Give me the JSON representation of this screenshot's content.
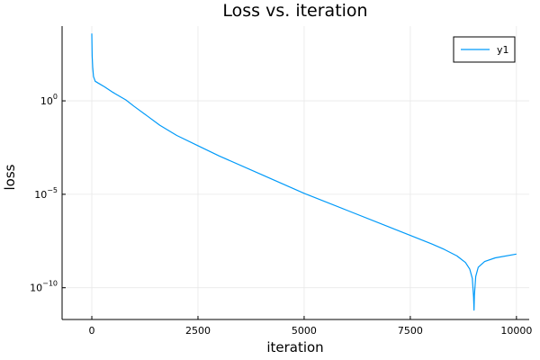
{
  "chart_data": {
    "type": "line",
    "title": "Loss vs. iteration",
    "xlabel": "iteration",
    "ylabel": "loss",
    "xlim": [
      -700,
      10300
    ],
    "x_ticks": [
      0,
      2500,
      5000,
      7500,
      10000
    ],
    "x_tick_labels": [
      "0",
      "2500",
      "5000",
      "7500",
      "10000"
    ],
    "y_scale": "log10",
    "ylim_log10": [
      -11.7,
      4.0
    ],
    "y_ticks_log10": [
      0,
      -5,
      -10
    ],
    "y_tick_labels": [
      {
        "base": "10",
        "exp": "0"
      },
      {
        "base": "10",
        "exp": "−5"
      },
      {
        "base": "10",
        "exp": "−10"
      }
    ],
    "grid": true,
    "legend_position": "top-right",
    "series": [
      {
        "name": "y1",
        "color": "#009af9",
        "points": [
          {
            "x": 0,
            "log10_y": 3.6
          },
          {
            "x": 8,
            "log10_y": 2.4
          },
          {
            "x": 20,
            "log10_y": 1.8
          },
          {
            "x": 40,
            "log10_y": 1.3
          },
          {
            "x": 80,
            "log10_y": 1.05
          },
          {
            "x": 150,
            "log10_y": 0.95
          },
          {
            "x": 300,
            "log10_y": 0.75
          },
          {
            "x": 500,
            "log10_y": 0.45
          },
          {
            "x": 800,
            "log10_y": 0.05
          },
          {
            "x": 1000,
            "log10_y": -0.3
          },
          {
            "x": 1300,
            "log10_y": -0.8
          },
          {
            "x": 1600,
            "log10_y": -1.3
          },
          {
            "x": 2000,
            "log10_y": -1.85
          },
          {
            "x": 2500,
            "log10_y": -2.4
          },
          {
            "x": 3000,
            "log10_y": -2.95
          },
          {
            "x": 4000,
            "log10_y": -3.95
          },
          {
            "x": 5000,
            "log10_y": -4.95
          },
          {
            "x": 6000,
            "log10_y": -5.85
          },
          {
            "x": 7000,
            "log10_y": -6.75
          },
          {
            "x": 7500,
            "log10_y": -7.2
          },
          {
            "x": 8000,
            "log10_y": -7.65
          },
          {
            "x": 8300,
            "log10_y": -7.95
          },
          {
            "x": 8600,
            "log10_y": -8.3
          },
          {
            "x": 8800,
            "log10_y": -8.65
          },
          {
            "x": 8900,
            "log10_y": -9.0
          },
          {
            "x": 8960,
            "log10_y": -9.5
          },
          {
            "x": 8990,
            "log10_y": -10.5
          },
          {
            "x": 9000,
            "log10_y": -11.2
          },
          {
            "x": 9010,
            "log10_y": -10.4
          },
          {
            "x": 9040,
            "log10_y": -9.4
          },
          {
            "x": 9100,
            "log10_y": -8.9
          },
          {
            "x": 9250,
            "log10_y": -8.6
          },
          {
            "x": 9500,
            "log10_y": -8.4
          },
          {
            "x": 10000,
            "log10_y": -8.2
          }
        ]
      }
    ]
  }
}
